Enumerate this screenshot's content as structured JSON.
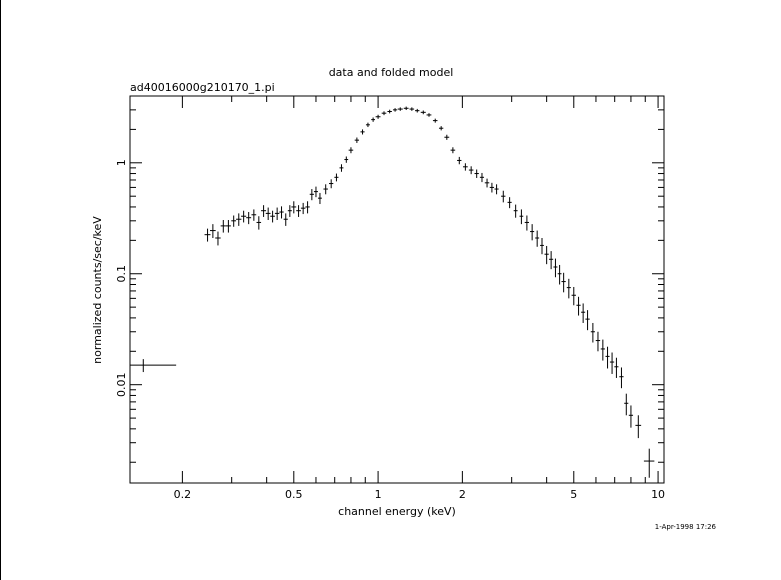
{
  "plot": {
    "title": "data and folded model",
    "file_label": "ad40016000g210170_1.pi",
    "timestamp": "1-Apr-1998 17:26",
    "frame_color": "#000000",
    "background": "#ffffff"
  },
  "chart_data": {
    "type": "scatter",
    "title": "data and folded model",
    "subtitle": "ad40016000g210170_1.pi",
    "xlabel": "channel energy (keV)",
    "ylabel": "normalized counts/sec/keV",
    "xscale": "log",
    "yscale": "log",
    "xlim": [
      0.13,
      10.5
    ],
    "ylim": [
      0.0013,
      4.0
    ],
    "xticks": [
      0.2,
      0.5,
      1,
      2,
      5,
      10
    ],
    "xtick_labels": [
      "0.2",
      "0.5",
      "1",
      "2",
      "5",
      "10"
    ],
    "yticks": [
      0.01,
      0.1,
      1
    ],
    "ytick_labels": [
      "0.01",
      "0.1",
      "1"
    ],
    "grid": false,
    "legend": "none",
    "series": [
      {
        "marker": "cross-errorbar",
        "color": "#000000",
        "x": [
          0.145,
          0.246,
          0.257,
          0.268,
          0.28,
          0.292,
          0.305,
          0.318,
          0.331,
          0.345,
          0.36,
          0.375,
          0.39,
          0.405,
          0.42,
          0.436,
          0.452,
          0.468,
          0.484,
          0.5,
          0.52,
          0.54,
          0.56,
          0.58,
          0.6,
          0.62,
          0.65,
          0.68,
          0.71,
          0.74,
          0.77,
          0.8,
          0.84,
          0.88,
          0.92,
          0.96,
          1.0,
          1.05,
          1.1,
          1.15,
          1.2,
          1.26,
          1.32,
          1.38,
          1.45,
          1.52,
          1.6,
          1.68,
          1.76,
          1.85,
          1.95,
          2.05,
          2.15,
          2.25,
          2.35,
          2.45,
          2.55,
          2.65,
          2.8,
          2.95,
          3.1,
          3.25,
          3.4,
          3.55,
          3.7,
          3.85,
          4.0,
          4.15,
          4.3,
          4.45,
          4.6,
          4.8,
          5.0,
          5.2,
          5.4,
          5.6,
          5.85,
          6.1,
          6.35,
          6.6,
          6.85,
          7.1,
          7.4,
          7.7,
          8.0,
          8.5,
          9.3
        ],
        "y": [
          0.015,
          0.225,
          0.245,
          0.21,
          0.27,
          0.27,
          0.3,
          0.31,
          0.33,
          0.32,
          0.34,
          0.29,
          0.37,
          0.35,
          0.33,
          0.35,
          0.36,
          0.31,
          0.37,
          0.4,
          0.37,
          0.39,
          0.4,
          0.52,
          0.55,
          0.48,
          0.58,
          0.65,
          0.74,
          0.9,
          1.07,
          1.3,
          1.6,
          1.9,
          2.2,
          2.45,
          2.6,
          2.8,
          2.9,
          3.0,
          3.05,
          3.1,
          3.05,
          2.95,
          2.85,
          2.7,
          2.4,
          2.05,
          1.7,
          1.3,
          1.05,
          0.92,
          0.86,
          0.8,
          0.74,
          0.66,
          0.6,
          0.58,
          0.5,
          0.44,
          0.37,
          0.33,
          0.29,
          0.24,
          0.21,
          0.18,
          0.15,
          0.135,
          0.115,
          0.1,
          0.085,
          0.075,
          0.064,
          0.052,
          0.045,
          0.039,
          0.03,
          0.025,
          0.021,
          0.018,
          0.016,
          0.0145,
          0.0118,
          0.0068,
          0.0053,
          0.0043,
          0.00205
        ],
        "x_err": [
          0.045,
          0.006,
          0.006,
          0.006,
          0.006,
          0.006,
          0.006,
          0.007,
          0.007,
          0.007,
          0.007,
          0.007,
          0.008,
          0.008,
          0.008,
          0.008,
          0.008,
          0.008,
          0.008,
          0.01,
          0.01,
          0.01,
          0.01,
          0.01,
          0.01,
          0.01,
          0.012,
          0.012,
          0.012,
          0.012,
          0.012,
          0.015,
          0.015,
          0.015,
          0.015,
          0.015,
          0.02,
          0.02,
          0.02,
          0.02,
          0.025,
          0.025,
          0.025,
          0.025,
          0.03,
          0.03,
          0.03,
          0.03,
          0.035,
          0.035,
          0.035,
          0.04,
          0.04,
          0.04,
          0.04,
          0.045,
          0.045,
          0.045,
          0.05,
          0.05,
          0.05,
          0.05,
          0.06,
          0.06,
          0.06,
          0.06,
          0.07,
          0.07,
          0.07,
          0.07,
          0.08,
          0.08,
          0.09,
          0.09,
          0.09,
          0.1,
          0.1,
          0.11,
          0.11,
          0.11,
          0.12,
          0.12,
          0.13,
          0.13,
          0.14,
          0.2,
          0.4
        ],
        "y_err": [
          0.002,
          0.03,
          0.035,
          0.03,
          0.035,
          0.035,
          0.035,
          0.04,
          0.04,
          0.04,
          0.04,
          0.04,
          0.045,
          0.045,
          0.04,
          0.045,
          0.045,
          0.04,
          0.045,
          0.05,
          0.045,
          0.045,
          0.05,
          0.06,
          0.06,
          0.055,
          0.06,
          0.06,
          0.06,
          0.07,
          0.07,
          0.08,
          0.09,
          0.1,
          0.1,
          0.11,
          0.11,
          0.11,
          0.11,
          0.11,
          0.11,
          0.11,
          0.11,
          0.11,
          0.11,
          0.1,
          0.1,
          0.09,
          0.09,
          0.08,
          0.08,
          0.07,
          0.07,
          0.07,
          0.07,
          0.06,
          0.06,
          0.06,
          0.06,
          0.05,
          0.05,
          0.05,
          0.045,
          0.04,
          0.035,
          0.03,
          0.028,
          0.025,
          0.022,
          0.02,
          0.017,
          0.015,
          0.012,
          0.01,
          0.009,
          0.008,
          0.006,
          0.005,
          0.0045,
          0.004,
          0.0035,
          0.003,
          0.0025,
          0.0015,
          0.0012,
          0.001,
          0.0006
        ]
      }
    ]
  }
}
